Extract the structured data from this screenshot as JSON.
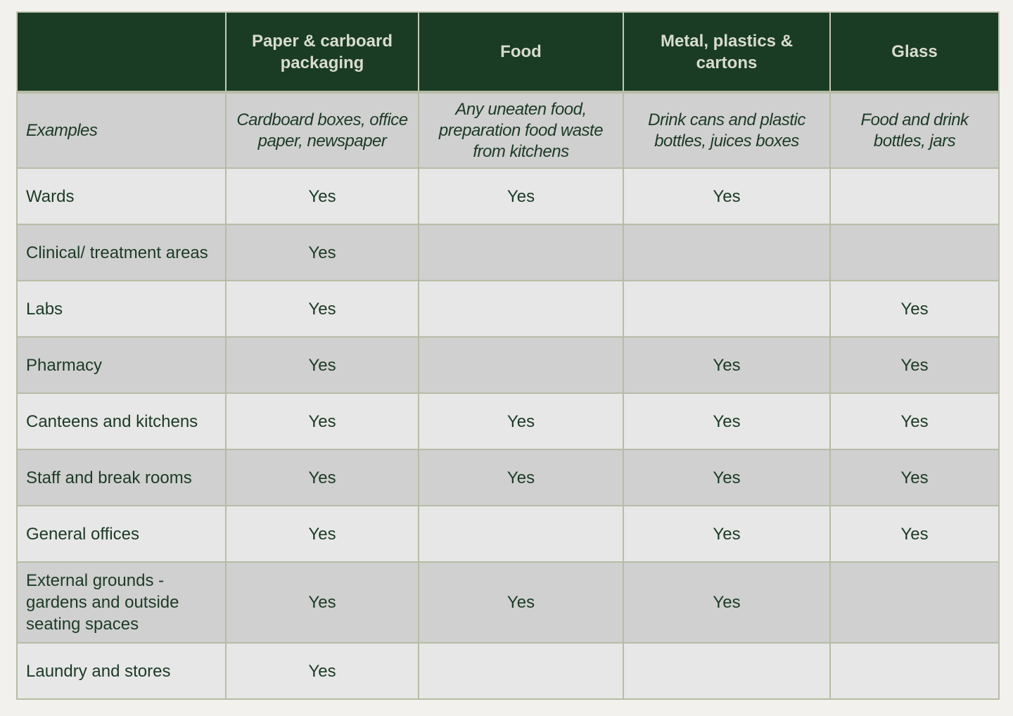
{
  "table": {
    "headers": [
      "",
      "Paper & carboard packaging",
      "Food",
      "Metal, plastics & cartons",
      "Glass"
    ],
    "examples": {
      "label": "Examples",
      "cells": [
        "Cardboard boxes, office paper, newspaper",
        "Any uneaten food, preparation food waste from kitchens",
        "Drink cans and plastic bottles, juices boxes",
        "Food and drink bottles, jars"
      ]
    },
    "rows": [
      {
        "label": "Wards",
        "cells": [
          "Yes",
          "Yes",
          "Yes",
          ""
        ]
      },
      {
        "label": "Clinical/ treatment areas",
        "cells": [
          "Yes",
          "",
          "",
          ""
        ]
      },
      {
        "label": "Labs",
        "cells": [
          "Yes",
          "",
          "",
          "Yes"
        ]
      },
      {
        "label": "Pharmacy",
        "cells": [
          "Yes",
          "",
          "Yes",
          "Yes"
        ]
      },
      {
        "label": "Canteens and kitchens",
        "cells": [
          "Yes",
          "Yes",
          "Yes",
          "Yes"
        ]
      },
      {
        "label": "Staff and break rooms",
        "cells": [
          "Yes",
          "Yes",
          "Yes",
          "Yes"
        ]
      },
      {
        "label": "General offices",
        "cells": [
          "Yes",
          "",
          "Yes",
          "Yes"
        ]
      },
      {
        "label": "External grounds - gardens and outside seating spaces",
        "cells": [
          "Yes",
          "Yes",
          "Yes",
          ""
        ]
      },
      {
        "label": "Laundry and stores",
        "cells": [
          "Yes",
          "",
          "",
          ""
        ]
      }
    ]
  },
  "colors": {
    "header_bg": "#1a3c25",
    "header_text": "#d9dccd",
    "row_shade": "#cfd0cf",
    "row_light": "#e6e7e6",
    "body_text": "#1d3a27",
    "border": "#b7bca5"
  }
}
